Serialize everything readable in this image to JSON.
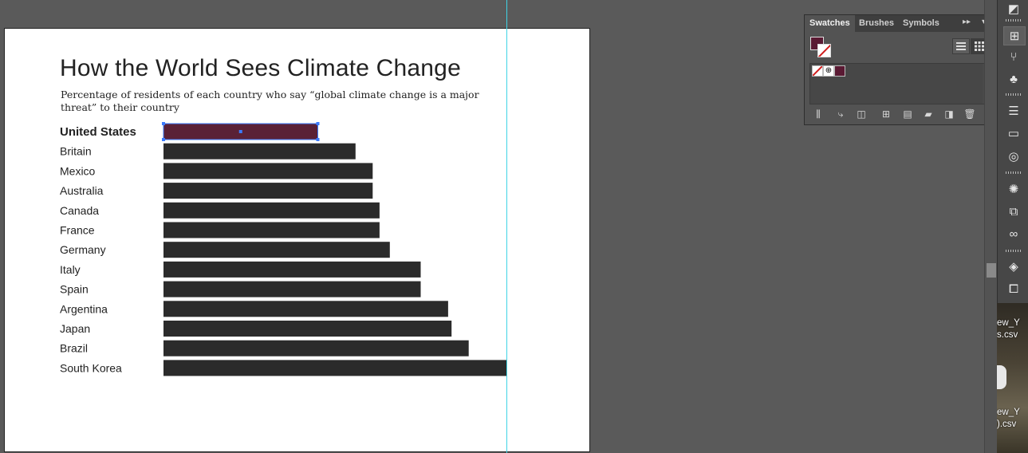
{
  "artboard": {
    "title": "How the World Sees Climate Change",
    "subtitle": "Percentage of residents of each country who say “global climate change is a major threat” to their country"
  },
  "chart_data": {
    "type": "bar",
    "orientation": "horizontal",
    "title": "How the World Sees Climate Change",
    "subtitle": "Percentage of residents of each country who say “global climate change is a major threat” to their country",
    "categories": [
      "United States",
      "Britain",
      "Mexico",
      "Australia",
      "Canada",
      "France",
      "Germany",
      "Italy",
      "Spain",
      "Argentina",
      "Japan",
      "Brazil",
      "South Korea"
    ],
    "values": [
      45,
      56,
      61,
      61,
      63,
      63,
      66,
      75,
      75,
      83,
      84,
      89,
      100
    ],
    "highlight_index": 0,
    "colors": {
      "bar": "#2b2b2b",
      "highlight": "#5a2136"
    },
    "grid": false,
    "legend": "none"
  },
  "swatches_panel": {
    "tabs": [
      "Swatches",
      "Brushes",
      "Symbols"
    ],
    "active_tab": "Swatches",
    "fill_color": "#5a1a33",
    "stroke_color": "none",
    "swatches": [
      {
        "name": "[None]",
        "color": "none"
      },
      {
        "name": "[Registration]",
        "color": "#000000"
      },
      {
        "name": "maroon",
        "color": "#5a1a33"
      }
    ],
    "footer_icons": [
      "swatch-libraries-menu-icon",
      "place-swatch-icon",
      "show-swatch-kinds-icon",
      "swatch-options-icon",
      "color-group-icon",
      "new-color-group-icon",
      "new-swatch-icon",
      "delete-swatch-icon"
    ]
  },
  "dock": {
    "icons": [
      "gradient-icon",
      "swatches-icon",
      "brushes-icon",
      "symbols-icon",
      "stroke-icon",
      "gradient-panel-icon",
      "transparency-icon",
      "appearance-icon",
      "graphic-styles-icon",
      "cc-libraries-icon",
      "layers-icon",
      "artboards-icon"
    ]
  },
  "desktop_files": [
    "ew_Y\ns.csv",
    "ew_Y\n).csv"
  ]
}
